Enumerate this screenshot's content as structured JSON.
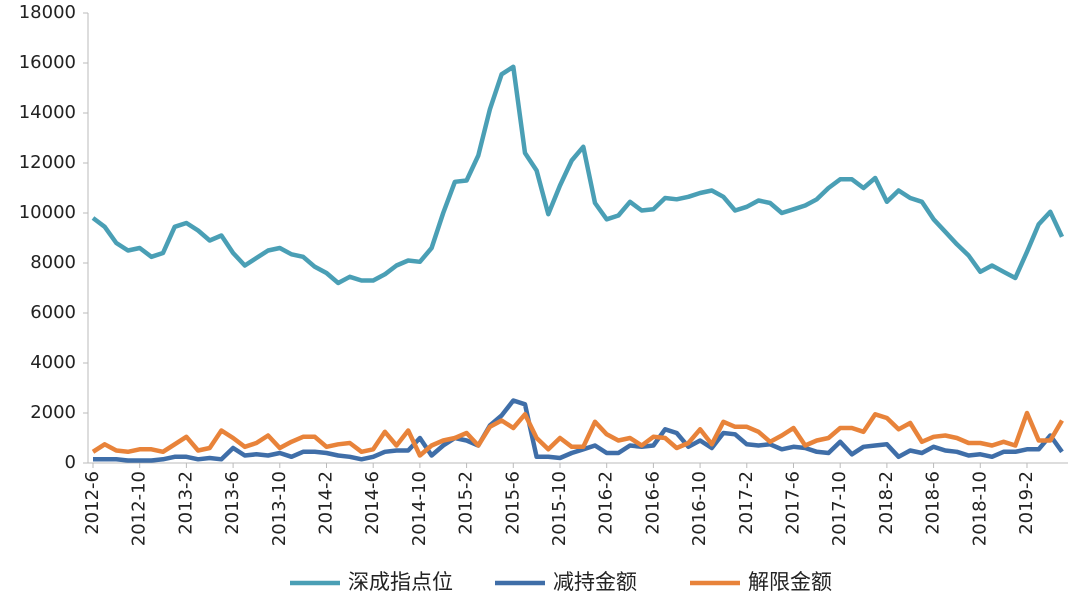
{
  "chart_data": {
    "type": "line",
    "categories": [
      "2012-6",
      null,
      null,
      null,
      "2012-10",
      null,
      null,
      null,
      "2013-2",
      null,
      null,
      null,
      "2013-6",
      null,
      null,
      null,
      "2013-10",
      null,
      null,
      null,
      "2014-2",
      null,
      null,
      null,
      "2014-6",
      null,
      null,
      null,
      "2014-10",
      null,
      null,
      null,
      "2015-2",
      null,
      null,
      null,
      "2015-6",
      null,
      null,
      null,
      "2015-10",
      null,
      null,
      null,
      "2016-2",
      null,
      null,
      null,
      "2016-6",
      null,
      null,
      null,
      "2016-10",
      null,
      null,
      null,
      "2017-2",
      null,
      null,
      null,
      "2017-6",
      null,
      null,
      null,
      "2017-10",
      null,
      null,
      null,
      "2018-2",
      null,
      null,
      null,
      "2018-6",
      null,
      null,
      null,
      "2018-10",
      null,
      null,
      null,
      "2019-2",
      null,
      null,
      null
    ],
    "series": [
      {
        "name": "深成指点位",
        "color": "#4a9fb5",
        "values": [
          9800,
          9450,
          8800,
          8500,
          8600,
          8250,
          8400,
          9450,
          9600,
          9300,
          8900,
          9100,
          8400,
          7900,
          8200,
          8500,
          8600,
          8350,
          8250,
          7850,
          7600,
          7200,
          7450,
          7300,
          7300,
          7550,
          7900,
          8100,
          8050,
          8600,
          10000,
          11250,
          11300,
          12300,
          14150,
          15550,
          15850,
          12400,
          11700,
          9950,
          11100,
          12100,
          12650,
          10400,
          9750,
          9900,
          10450,
          10100,
          10150,
          10600,
          10550,
          10650,
          10800,
          10900,
          10650,
          10100,
          10250,
          10500,
          10400,
          10000,
          10150,
          10300,
          10550,
          11000,
          11350,
          11350,
          11000,
          11400,
          10450,
          10900,
          10600,
          10450,
          9750,
          9250,
          8750,
          8300,
          7650,
          7900,
          7650,
          7400,
          8450,
          9550,
          10050,
          9050
        ]
      },
      {
        "name": "减持金额",
        "color": "#3f6ea8",
        "values": [
          150,
          150,
          150,
          100,
          100,
          100,
          150,
          250,
          250,
          150,
          200,
          150,
          600,
          300,
          350,
          300,
          400,
          250,
          450,
          450,
          400,
          300,
          250,
          150,
          250,
          450,
          500,
          500,
          1000,
          300,
          700,
          1000,
          900,
          700,
          1500,
          1900,
          2500,
          2350,
          250,
          250,
          200,
          400,
          550,
          700,
          400,
          400,
          700,
          650,
          700,
          1350,
          1200,
          650,
          900,
          600,
          1200,
          1150,
          750,
          700,
          750,
          550,
          650,
          600,
          450,
          400,
          850,
          350,
          650,
          700,
          750,
          250,
          500,
          400,
          650,
          500,
          450,
          300,
          350,
          250,
          450,
          450,
          550,
          550,
          1100,
          450
        ]
      },
      {
        "name": "解限金额",
        "color": "#e8833a",
        "values": [
          450,
          750,
          500,
          450,
          550,
          550,
          450,
          750,
          1050,
          500,
          600,
          1300,
          1000,
          650,
          800,
          1100,
          600,
          850,
          1050,
          1050,
          650,
          750,
          800,
          450,
          550,
          1250,
          700,
          1300,
          300,
          700,
          900,
          1000,
          1200,
          700,
          1450,
          1700,
          1400,
          1950,
          1000,
          550,
          1000,
          650,
          650,
          1650,
          1150,
          900,
          1000,
          700,
          1050,
          1000,
          600,
          800,
          1350,
          750,
          1650,
          1450,
          1450,
          1250,
          850,
          1100,
          1400,
          700,
          900,
          1000,
          1400,
          1400,
          1250,
          1950,
          1800,
          1350,
          1600,
          850,
          1050,
          1100,
          1000,
          800,
          800,
          700,
          850,
          700,
          2000,
          900,
          900,
          1700
        ]
      }
    ],
    "ylim": [
      0,
      18000
    ],
    "yticks": [
      0,
      2000,
      4000,
      6000,
      8000,
      10000,
      12000,
      14000,
      16000,
      18000
    ],
    "grid": false
  }
}
